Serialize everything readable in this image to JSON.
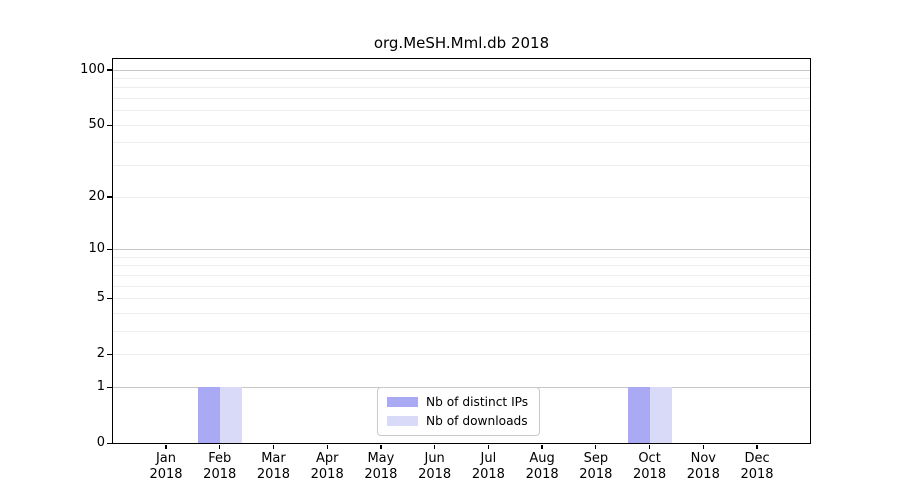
{
  "title": "org.MeSH.Mml.db 2018",
  "legend": {
    "items": [
      {
        "label": "Nb of distinct IPs",
        "color": "#a9a9f4"
      },
      {
        "label": "Nb of downloads",
        "color": "#d9d9f8"
      }
    ]
  },
  "chart_data": {
    "type": "bar",
    "title": "org.MeSH.Mml.db 2018",
    "scale": "log1p",
    "categories": [
      "Jan",
      "Feb",
      "Mar",
      "Apr",
      "May",
      "Jun",
      "Jul",
      "Aug",
      "Sep",
      "Oct",
      "Nov",
      "Dec"
    ],
    "category_year": "2018",
    "series": [
      {
        "name": "Nb of distinct IPs",
        "color": "#a9a9f4",
        "values": [
          0,
          1,
          0,
          0,
          0,
          0,
          0,
          0,
          0,
          1,
          0,
          0
        ]
      },
      {
        "name": "Nb of downloads",
        "color": "#d9d9f8",
        "values": [
          0,
          1,
          0,
          0,
          0,
          0,
          0,
          0,
          0,
          1,
          0,
          0
        ]
      }
    ],
    "y_ticks": [
      0,
      1,
      2,
      5,
      10,
      20,
      50,
      100
    ],
    "ylim": [
      0,
      100
    ],
    "grid": "horizontal",
    "legend_position": "bottom-center",
    "colors": {
      "major_grid": "#c6c6c6",
      "minor_grid": "#ededed",
      "axis": "#000000",
      "background": "#ffffff"
    }
  }
}
